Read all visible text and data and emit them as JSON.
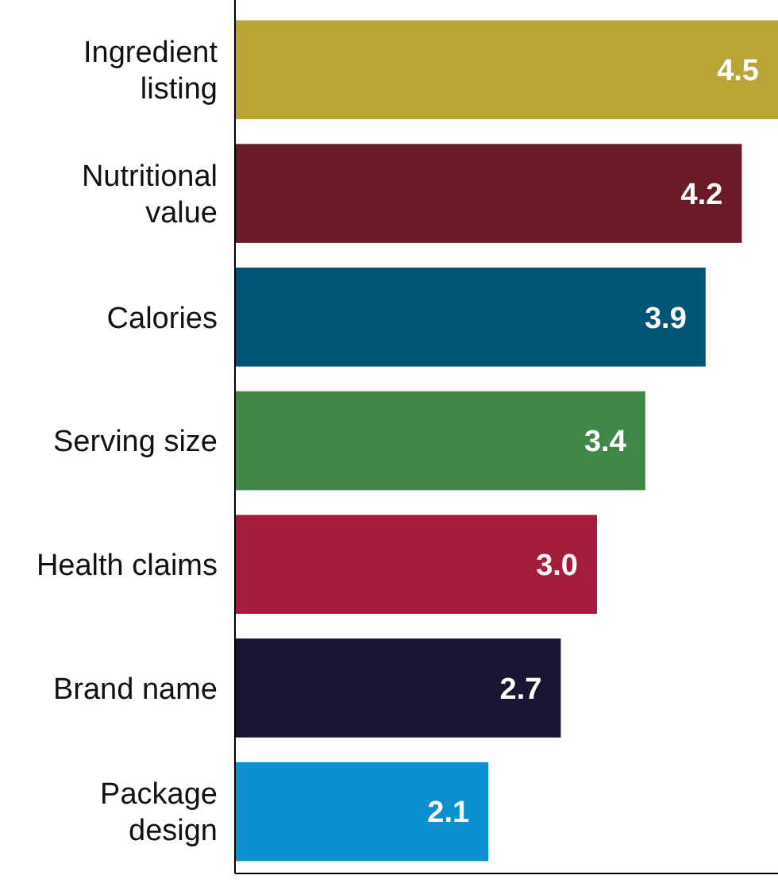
{
  "chart_data": {
    "type": "bar",
    "orientation": "horizontal",
    "categories": [
      "Ingredient listing",
      "Nutritional value",
      "Calories",
      "Serving size",
      "Health claims",
      "Brand name",
      "Package design"
    ],
    "values": [
      4.5,
      4.2,
      3.9,
      3.4,
      3.0,
      2.7,
      2.1
    ],
    "value_labels": [
      "4.5",
      "4.2",
      "3.9",
      "3.4",
      "3.0",
      "2.7",
      "2.1"
    ],
    "colors": [
      "#b9a535",
      "#6b1a26",
      "#005577",
      "#3e8748",
      "#a61c3c",
      "#1a1433",
      "#0a8fcf"
    ],
    "xlim": [
      0,
      4.5
    ],
    "tick_labels": "y"
  }
}
